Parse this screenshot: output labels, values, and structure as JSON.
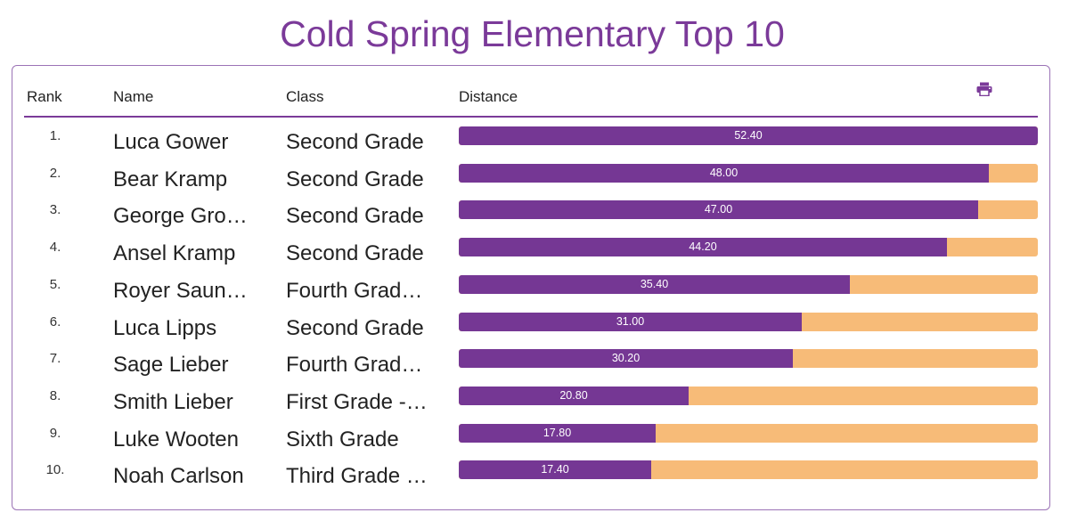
{
  "page": {
    "title": "Cold Spring Elementary Top 10"
  },
  "table": {
    "headers": {
      "rank": "Rank",
      "name": "Name",
      "class": "Class",
      "distance": "Distance"
    },
    "print_icon": "print-icon",
    "max_distance": 52.4,
    "rows": [
      {
        "rank": "1.",
        "name": "Luca Gower",
        "class": "Second Grade",
        "distance": 52.4,
        "distance_label": "52.40"
      },
      {
        "rank": "2.",
        "name": "Bear Kramp",
        "class": "Second Grade",
        "distance": 48.0,
        "distance_label": "48.00"
      },
      {
        "rank": "3.",
        "name": "George Grover",
        "class": "Second Grade",
        "distance": 47.0,
        "distance_label": "47.00"
      },
      {
        "rank": "4.",
        "name": "Ansel Kramp",
        "class": "Second Grade",
        "distance": 44.2,
        "distance_label": "44.20"
      },
      {
        "rank": "5.",
        "name": "Royer Saund…",
        "class": "Fourth Grade…",
        "distance": 35.4,
        "distance_label": "35.40"
      },
      {
        "rank": "6.",
        "name": "Luca Lipps",
        "class": "Second Grade",
        "distance": 31.0,
        "distance_label": "31.00"
      },
      {
        "rank": "7.",
        "name": "Sage Lieber",
        "class": "Fourth Grade…",
        "distance": 30.2,
        "distance_label": "30.20"
      },
      {
        "rank": "8.",
        "name": "Smith Lieber",
        "class": "First Grade - …",
        "distance": 20.8,
        "distance_label": "20.80"
      },
      {
        "rank": "9.",
        "name": "Luke Wooten",
        "class": "Sixth Grade",
        "distance": 17.8,
        "distance_label": "17.80"
      },
      {
        "rank": "10.",
        "name": "Noah Carlson",
        "class": "Third Grade - …",
        "distance": 17.4,
        "distance_label": "17.40"
      }
    ]
  },
  "colors": {
    "accent": "#7b3a99",
    "bar_fill": "#753794",
    "bar_track": "#f7bb78"
  }
}
